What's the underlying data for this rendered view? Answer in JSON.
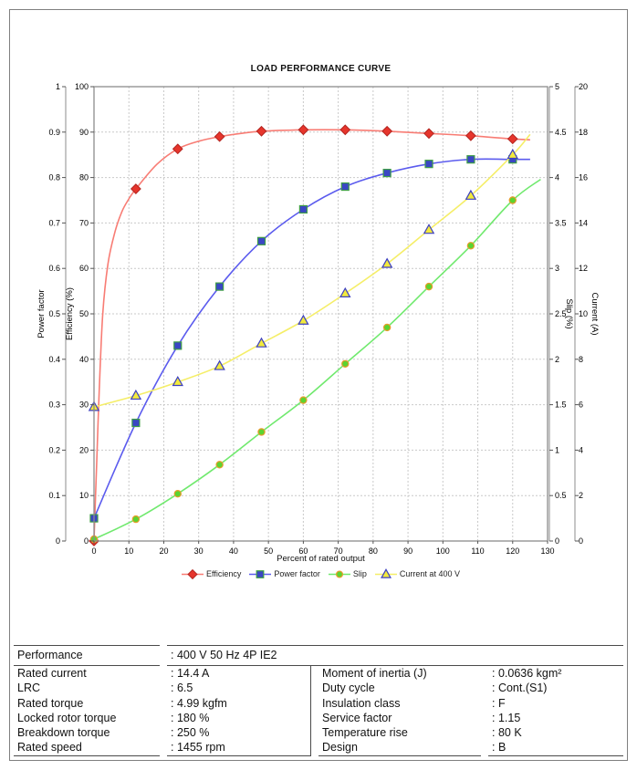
{
  "chart_data": {
    "type": "line",
    "title": "LOAD PERFORMANCE CURVE",
    "x_axis": {
      "label": "Percent of rated output",
      "min": 0,
      "max": 130,
      "step": 10
    },
    "y_axes": [
      {
        "id": "power_factor",
        "label": "Power factor",
        "min": 0,
        "max": 1,
        "step": 0.1,
        "side": "left",
        "pos": "outer"
      },
      {
        "id": "efficiency",
        "label": "Efficiency (%)",
        "min": 0,
        "max": 100,
        "step": 10,
        "side": "left",
        "pos": "inner"
      },
      {
        "id": "slip",
        "label": "Slip (%)",
        "min": 0,
        "max": 5,
        "step": 0.5,
        "side": "right",
        "pos": "inner"
      },
      {
        "id": "current",
        "label": "Current (A)",
        "min": 0,
        "max": 20,
        "step": 2,
        "side": "right",
        "pos": "outer"
      }
    ],
    "grid": {
      "on": true,
      "color": "#c9c9c9"
    },
    "legend_position": "bottom-center",
    "series": [
      {
        "name": "Efficiency",
        "axis": "efficiency",
        "marker": "diamond",
        "line_color": "#f87c74",
        "marker_fill": "#e6352c",
        "marker_stroke": "#b3241f",
        "x": [
          0,
          12,
          24,
          36,
          48,
          60,
          72,
          84,
          96,
          108,
          120
        ],
        "y": [
          0,
          77.5,
          86.3,
          89.0,
          90.2,
          90.5,
          90.5,
          90.2,
          89.7,
          89.2,
          88.5
        ],
        "line_x": [
          0,
          0.8,
          1.5,
          2.5,
          4,
          6,
          8,
          10,
          12,
          18,
          24,
          30,
          36,
          42,
          48,
          60,
          72,
          84,
          96,
          108,
          120,
          125
        ],
        "line_y": [
          0,
          18,
          33,
          50,
          61,
          68,
          72.5,
          75.3,
          77.5,
          82.9,
          86.3,
          88.0,
          89.0,
          89.7,
          90.2,
          90.5,
          90.5,
          90.2,
          89.7,
          89.2,
          88.5,
          88.3
        ]
      },
      {
        "name": "Power factor",
        "axis": "power_factor",
        "marker": "square",
        "line_color": "#5b5bee",
        "marker_fill": "#3a46c4",
        "marker_stroke": "#3f9e46",
        "x": [
          0,
          12,
          24,
          36,
          48,
          60,
          72,
          84,
          96,
          108,
          120
        ],
        "y": [
          0.05,
          0.26,
          0.43,
          0.56,
          0.66,
          0.73,
          0.78,
          0.81,
          0.83,
          0.84,
          0.84
        ],
        "line_x": [
          0,
          12,
          24,
          36,
          48,
          60,
          72,
          84,
          96,
          108,
          120,
          125
        ],
        "line_y": [
          0.05,
          0.26,
          0.43,
          0.56,
          0.66,
          0.73,
          0.78,
          0.81,
          0.83,
          0.84,
          0.84,
          0.84
        ]
      },
      {
        "name": "Slip",
        "axis": "slip",
        "marker": "circle",
        "line_color": "#70e96e",
        "marker_fill": "#5ad431",
        "marker_stroke": "#e89b2a",
        "x": [
          0,
          12,
          24,
          36,
          48,
          60,
          72,
          84,
          96,
          108,
          120
        ],
        "y": [
          0.02,
          0.24,
          0.52,
          0.84,
          1.2,
          1.55,
          1.95,
          2.35,
          2.8,
          3.25,
          3.75
        ],
        "line_x": [
          0,
          12,
          24,
          36,
          48,
          60,
          72,
          84,
          96,
          108,
          120,
          128
        ],
        "line_y": [
          0.02,
          0.24,
          0.52,
          0.84,
          1.2,
          1.55,
          1.95,
          2.35,
          2.8,
          3.25,
          3.75,
          3.98
        ]
      },
      {
        "name": "Current at 400 V",
        "axis": "current",
        "marker": "triangle",
        "line_color": "#f5ee68",
        "marker_fill": "#f2ea3c",
        "marker_stroke": "#3c3fc0",
        "x": [
          0,
          12,
          24,
          36,
          48,
          60,
          72,
          84,
          96,
          108,
          120
        ],
        "y": [
          5.9,
          6.4,
          7.0,
          7.7,
          8.7,
          9.7,
          10.9,
          12.2,
          13.7,
          15.2,
          17.0
        ],
        "line_x": [
          0,
          12,
          24,
          36,
          48,
          60,
          72,
          84,
          96,
          108,
          120,
          125
        ],
        "line_y": [
          5.9,
          6.4,
          7.0,
          7.7,
          8.7,
          9.7,
          10.9,
          12.2,
          13.7,
          15.2,
          17.0,
          17.9
        ]
      }
    ]
  },
  "spec_table": {
    "header": {
      "label": "Performance",
      "value": ": 400 V 50 Hz 4P IE2"
    },
    "rows": [
      {
        "l_label": "Rated current",
        "l_value": ": 14.4 A",
        "r_label": "Moment of inertia (J)",
        "r_value": ": 0.0636 kgm²"
      },
      {
        "l_label": "LRC",
        "l_value": ": 6.5",
        "r_label": "Duty cycle",
        "r_value": ": Cont.(S1)"
      },
      {
        "l_label": "Rated torque",
        "l_value": ": 4.99 kgfm",
        "r_label": "Insulation class",
        "r_value": ": F"
      },
      {
        "l_label": "Locked rotor torque",
        "l_value": ": 180 %",
        "r_label": "Service factor",
        "r_value": ": 1.15"
      },
      {
        "l_label": "Breakdown torque",
        "l_value": ": 250 %",
        "r_label": "Temperature rise",
        "r_value": ": 80 K"
      },
      {
        "l_label": "Rated speed",
        "l_value": ": 1455 rpm",
        "r_label": "Design",
        "r_value": ": B"
      }
    ]
  }
}
